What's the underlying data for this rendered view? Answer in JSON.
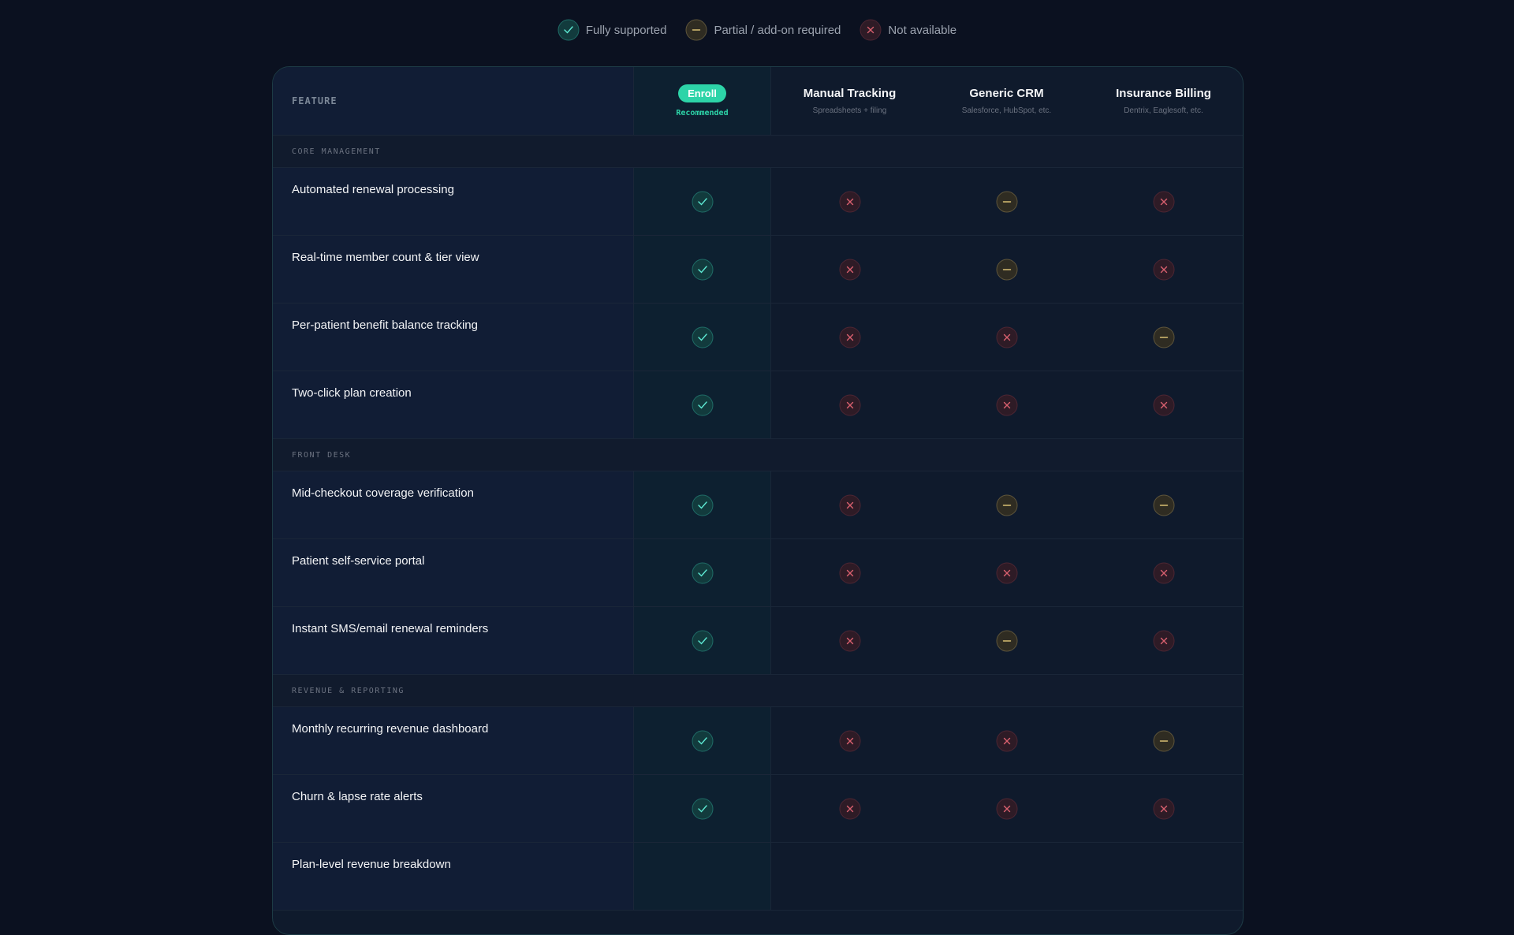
{
  "legend": [
    {
      "label": "Fully supported",
      "status": "full"
    },
    {
      "label": "Partial / add-on required",
      "status": "partial"
    },
    {
      "label": "Not available",
      "status": "none"
    }
  ],
  "table": {
    "feature_header": "FEATURE",
    "columns": [
      {
        "badge": "Enroll",
        "note": "Recommended",
        "highlight": true
      },
      {
        "name": "Manual Tracking",
        "note": "Spreadsheets + filing"
      },
      {
        "name": "Generic CRM",
        "note": "Salesforce, HubSpot, etc."
      },
      {
        "name": "Insurance Billing",
        "note": "Dentrix, Eaglesoft, etc."
      }
    ],
    "sections": [
      {
        "title": "CORE MANAGEMENT",
        "rows": [
          {
            "label": "Automated renewal processing",
            "cells": [
              "full",
              "none",
              "partial",
              "none"
            ]
          },
          {
            "label": "Real-time member count & tier view",
            "cells": [
              "full",
              "none",
              "partial",
              "none"
            ]
          },
          {
            "label": "Per-patient benefit balance tracking",
            "cells": [
              "full",
              "none",
              "none",
              "partial"
            ]
          },
          {
            "label": "Two-click plan creation",
            "cells": [
              "full",
              "none",
              "none",
              "none"
            ]
          }
        ]
      },
      {
        "title": "FRONT DESK",
        "rows": [
          {
            "label": "Mid-checkout coverage verification",
            "cells": [
              "full",
              "none",
              "partial",
              "partial"
            ]
          },
          {
            "label": "Patient self-service portal",
            "cells": [
              "full",
              "none",
              "none",
              "none"
            ]
          },
          {
            "label": "Instant SMS/email renewal reminders",
            "cells": [
              "full",
              "none",
              "partial",
              "none"
            ]
          }
        ]
      },
      {
        "title": "REVENUE & REPORTING",
        "rows": [
          {
            "label": "Monthly recurring revenue dashboard",
            "cells": [
              "full",
              "none",
              "none",
              "partial"
            ]
          },
          {
            "label": "Churn & lapse rate alerts",
            "cells": [
              "full",
              "none",
              "none",
              "none"
            ]
          },
          {
            "label": "Plan-level revenue breakdown"
          }
        ]
      }
    ]
  }
}
